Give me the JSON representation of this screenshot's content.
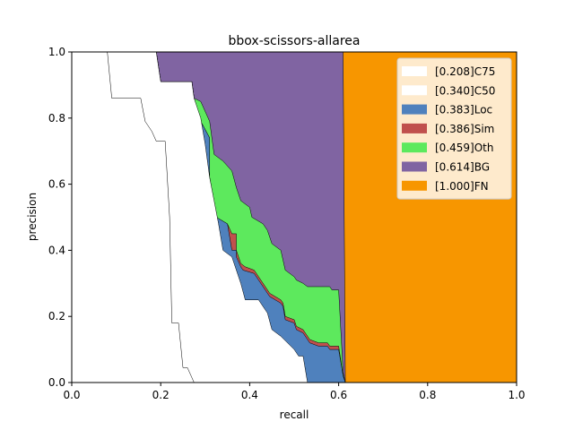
{
  "chart_data": {
    "type": "area",
    "title": "bbox-scissors-allarea",
    "xlabel": "recall",
    "ylabel": "precision",
    "xlim": [
      0,
      1
    ],
    "ylim": [
      0,
      1
    ],
    "x_ticks": [
      "0.0",
      "0.2",
      "0.4",
      "0.6",
      "0.8",
      "1.0"
    ],
    "y_ticks": [
      "0.0",
      "0.2",
      "0.4",
      "0.6",
      "0.8",
      "1.0"
    ],
    "grid": false,
    "legend_position": "top-right",
    "series": [
      {
        "name": "[0.208]C75",
        "color": "#ffffff",
        "points": [
          [
            0.0,
            1.0
          ],
          [
            0.08,
            1.0
          ],
          [
            0.09,
            0.86
          ],
          [
            0.155,
            0.86
          ],
          [
            0.165,
            0.79
          ],
          [
            0.18,
            0.76
          ],
          [
            0.19,
            0.73
          ],
          [
            0.21,
            0.73
          ],
          [
            0.22,
            0.5
          ],
          [
            0.225,
            0.18
          ],
          [
            0.24,
            0.18
          ],
          [
            0.25,
            0.045
          ],
          [
            0.26,
            0.045
          ],
          [
            0.275,
            0.0
          ]
        ]
      },
      {
        "name": "[0.340]C50",
        "color": "#ffffff",
        "points": [
          [
            0.0,
            1.0
          ],
          [
            0.19,
            1.0
          ],
          [
            0.2,
            0.91
          ],
          [
            0.27,
            0.91
          ],
          [
            0.275,
            0.86
          ],
          [
            0.29,
            0.8
          ],
          [
            0.3,
            0.72
          ],
          [
            0.31,
            0.62
          ],
          [
            0.32,
            0.55
          ],
          [
            0.33,
            0.48
          ],
          [
            0.34,
            0.4
          ],
          [
            0.36,
            0.38
          ],
          [
            0.38,
            0.3
          ],
          [
            0.39,
            0.25
          ],
          [
            0.42,
            0.25
          ],
          [
            0.44,
            0.21
          ],
          [
            0.45,
            0.16
          ],
          [
            0.47,
            0.14
          ],
          [
            0.5,
            0.1
          ],
          [
            0.51,
            0.08
          ],
          [
            0.52,
            0.08
          ],
          [
            0.53,
            0.0
          ]
        ]
      },
      {
        "name": "[0.383]Loc",
        "color": "#4f81bd",
        "points": [
          [
            0.0,
            1.0
          ],
          [
            0.19,
            1.0
          ],
          [
            0.2,
            0.91
          ],
          [
            0.27,
            0.91
          ],
          [
            0.275,
            0.86
          ],
          [
            0.29,
            0.79
          ],
          [
            0.31,
            0.74
          ],
          [
            0.31,
            0.62
          ],
          [
            0.325,
            0.5
          ],
          [
            0.35,
            0.48
          ],
          [
            0.36,
            0.4
          ],
          [
            0.37,
            0.4
          ],
          [
            0.37,
            0.38
          ],
          [
            0.38,
            0.35
          ],
          [
            0.385,
            0.34
          ],
          [
            0.41,
            0.33
          ],
          [
            0.42,
            0.31
          ],
          [
            0.445,
            0.26
          ],
          [
            0.47,
            0.24
          ],
          [
            0.475,
            0.23
          ],
          [
            0.48,
            0.19
          ],
          [
            0.5,
            0.18
          ],
          [
            0.505,
            0.16
          ],
          [
            0.52,
            0.15
          ],
          [
            0.535,
            0.12
          ],
          [
            0.555,
            0.11
          ],
          [
            0.575,
            0.11
          ],
          [
            0.58,
            0.1
          ],
          [
            0.6,
            0.1
          ],
          [
            0.61,
            0.02
          ],
          [
            0.615,
            0.0
          ]
        ]
      },
      {
        "name": "[0.386]Sim",
        "color": "#c0504d",
        "points": [
          [
            0.0,
            1.0
          ],
          [
            0.19,
            1.0
          ],
          [
            0.2,
            0.91
          ],
          [
            0.27,
            0.91
          ],
          [
            0.275,
            0.86
          ],
          [
            0.29,
            0.79
          ],
          [
            0.31,
            0.74
          ],
          [
            0.31,
            0.62
          ],
          [
            0.325,
            0.5
          ],
          [
            0.35,
            0.48
          ],
          [
            0.36,
            0.45
          ],
          [
            0.37,
            0.45
          ],
          [
            0.37,
            0.4
          ],
          [
            0.38,
            0.36
          ],
          [
            0.39,
            0.35
          ],
          [
            0.41,
            0.34
          ],
          [
            0.42,
            0.32
          ],
          [
            0.445,
            0.27
          ],
          [
            0.47,
            0.25
          ],
          [
            0.475,
            0.24
          ],
          [
            0.48,
            0.2
          ],
          [
            0.5,
            0.19
          ],
          [
            0.505,
            0.17
          ],
          [
            0.52,
            0.16
          ],
          [
            0.535,
            0.13
          ],
          [
            0.555,
            0.12
          ],
          [
            0.575,
            0.12
          ],
          [
            0.58,
            0.11
          ],
          [
            0.6,
            0.11
          ],
          [
            0.61,
            0.02
          ],
          [
            0.615,
            0.0
          ]
        ]
      },
      {
        "name": "[0.459]Oth",
        "color": "#5de95d",
        "points": [
          [
            0.0,
            1.0
          ],
          [
            0.19,
            1.0
          ],
          [
            0.2,
            0.91
          ],
          [
            0.27,
            0.91
          ],
          [
            0.275,
            0.86
          ],
          [
            0.29,
            0.85
          ],
          [
            0.31,
            0.79
          ],
          [
            0.32,
            0.69
          ],
          [
            0.34,
            0.67
          ],
          [
            0.36,
            0.64
          ],
          [
            0.37,
            0.59
          ],
          [
            0.38,
            0.55
          ],
          [
            0.4,
            0.53
          ],
          [
            0.405,
            0.5
          ],
          [
            0.43,
            0.48
          ],
          [
            0.44,
            0.46
          ],
          [
            0.45,
            0.42
          ],
          [
            0.47,
            0.4
          ],
          [
            0.48,
            0.34
          ],
          [
            0.5,
            0.32
          ],
          [
            0.505,
            0.31
          ],
          [
            0.52,
            0.3
          ],
          [
            0.53,
            0.29
          ],
          [
            0.58,
            0.29
          ],
          [
            0.585,
            0.28
          ],
          [
            0.6,
            0.28
          ],
          [
            0.61,
            0.03
          ],
          [
            0.615,
            0.0
          ]
        ]
      },
      {
        "name": "[0.614]BG",
        "color": "#8064a2",
        "points": [
          [
            0.0,
            1.0
          ],
          [
            0.61,
            1.0
          ],
          [
            0.615,
            0.0
          ]
        ]
      },
      {
        "name": "[1.000]FN",
        "color": "#f79600",
        "points": [
          [
            0.0,
            1.0
          ],
          [
            1.0,
            1.0
          ],
          [
            1.0,
            0.0
          ]
        ]
      }
    ]
  }
}
